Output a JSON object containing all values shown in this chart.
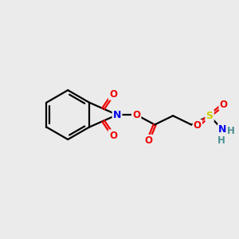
{
  "bg_color": "#ebebeb",
  "atom_colors": {
    "C": "#000000",
    "N": "#0000ee",
    "O": "#ee0000",
    "S": "#cccc00",
    "H": "#4a9090"
  },
  "bond_color": "#000000",
  "figsize": [
    3.0,
    3.0
  ],
  "dpi": 100,
  "lw": 1.6
}
